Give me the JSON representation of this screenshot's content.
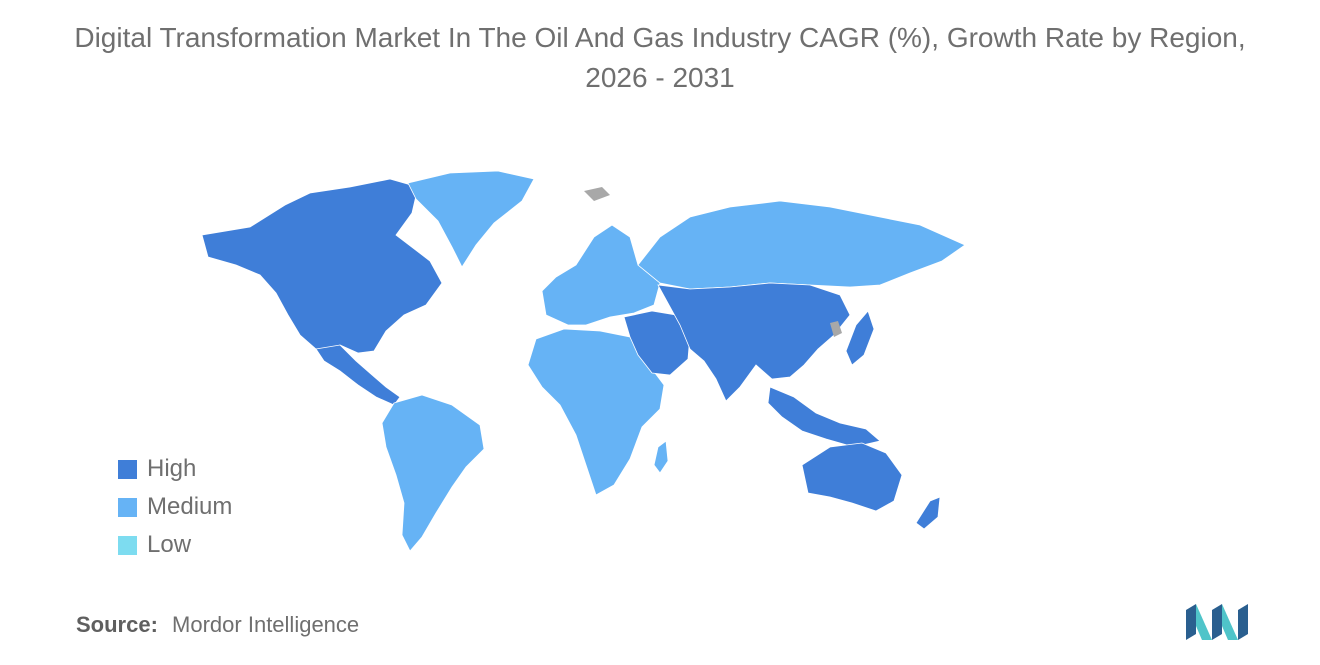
{
  "title": "Digital Transformation Market In The Oil And Gas Industry CAGR (%), Growth Rate by Region, 2026 - 2031",
  "legend": {
    "items": [
      {
        "label": "High",
        "color": "#3f7ed8"
      },
      {
        "label": "Medium",
        "color": "#66b3f5"
      },
      {
        "label": "Low",
        "color": "#7ddcf0"
      }
    ]
  },
  "map": {
    "no_data_color": "#a8a8a8",
    "regions": [
      {
        "id": "north-america",
        "level": "High"
      },
      {
        "id": "greenland",
        "level": "Medium"
      },
      {
        "id": "central-america",
        "level": "High"
      },
      {
        "id": "south-america",
        "level": "Medium"
      },
      {
        "id": "europe",
        "level": "Medium"
      },
      {
        "id": "russia",
        "level": "Medium"
      },
      {
        "id": "africa",
        "level": "Medium"
      },
      {
        "id": "middle-east",
        "level": "High"
      },
      {
        "id": "asia",
        "level": "High"
      },
      {
        "id": "southeast-asia",
        "level": "High"
      },
      {
        "id": "japan",
        "level": "High"
      },
      {
        "id": "australia",
        "level": "High"
      },
      {
        "id": "new-zealand",
        "level": "High"
      }
    ]
  },
  "source": {
    "label": "Source:",
    "value": "Mordor Intelligence"
  },
  "logo": {
    "icon": "mordor-intelligence-logo",
    "color_dark": "#2a5f8f",
    "color_light": "#4fc4c9"
  }
}
